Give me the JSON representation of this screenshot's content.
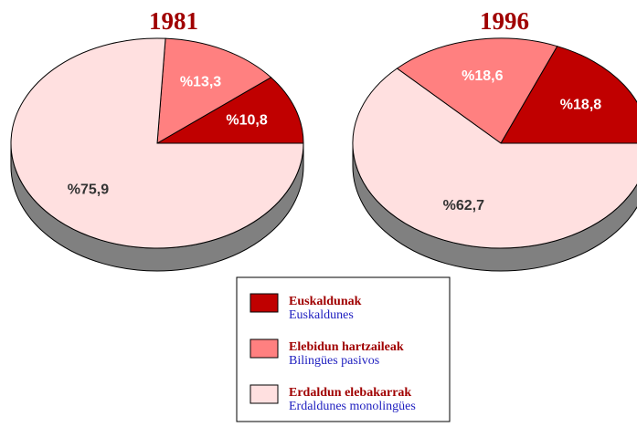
{
  "chart_data": [
    {
      "type": "pie",
      "title": "1981",
      "values": [
        10.8,
        13.3,
        75.9
      ],
      "value_labels": [
        "%10,8",
        "%13,3",
        "%75,9"
      ]
    },
    {
      "type": "pie",
      "title": "1996",
      "values": [
        18.8,
        18.6,
        62.7
      ],
      "value_labels": [
        "%18,8",
        "%18,6",
        "%62,7"
      ]
    }
  ],
  "legend": {
    "items": [
      {
        "label": "Euskaldunak",
        "sublabel": "Euskaldunes",
        "color": "#c00000",
        "label_color": "#ffffff"
      },
      {
        "label": "Elebidun hartzaileak",
        "sublabel": "Bilingües pasivos",
        "color": "#ff8080",
        "label_color": "#ffffff"
      },
      {
        "label": "Erdaldun elebakarrak",
        "sublabel": "Erdaldunes monolingües",
        "color": "#ffe0e0",
        "label_color": "#333333"
      }
    ]
  }
}
